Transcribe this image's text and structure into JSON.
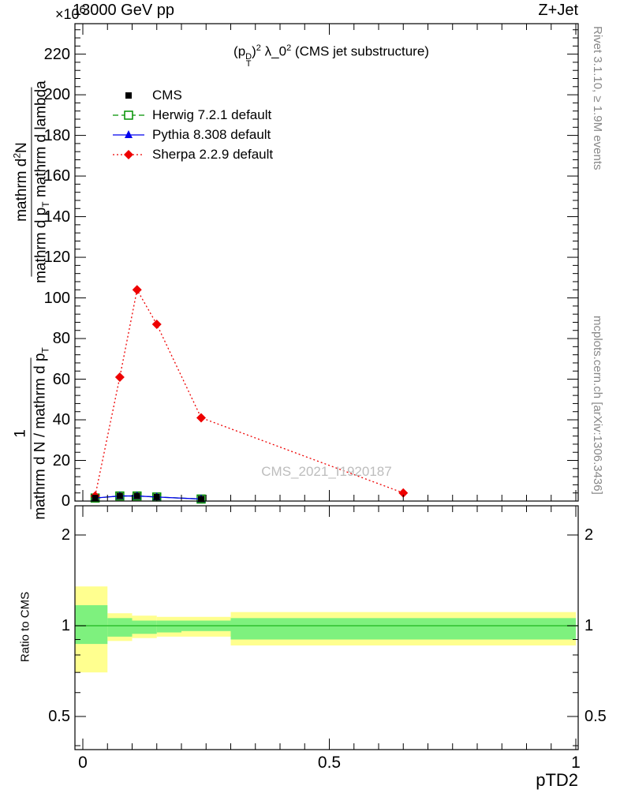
{
  "header": {
    "scale_x10": "×10",
    "scale_exp": "6",
    "energy": "13000 GeV pp",
    "process": "Z+Jet"
  },
  "title_parts": {
    "a": "(p",
    "sub1": "T",
    "sup1": "D",
    "b": ")",
    "sup2": "2",
    "c": " λ_0",
    "sup3": "2",
    "d": " (CMS jet substructure)"
  },
  "legend": {
    "items": [
      {
        "label": "CMS"
      },
      {
        "label": "Herwig 7.2.1 default"
      },
      {
        "label": "Pythia 8.308 default"
      },
      {
        "label": "Sherpa 2.2.9 default"
      }
    ]
  },
  "ylabel": {
    "f2_num_a": "mathrm d",
    "f2_num_sup": "2",
    "f2_num_b": "N",
    "f2_den_a": "mathrm d p",
    "f2_den_sub": "T",
    "f2_den_b": " mathrm d lambda",
    "f1_num": "1",
    "f1_den_a": "mathrm d N / mathrm d p",
    "f1_den_sub": "T"
  },
  "sidebar": {
    "rivet": "Rivet 3.1.10, ≥ 1.9M events",
    "mcplots": "mcplots.cern.ch [arXiv:1306.3436]"
  },
  "watermark": "CMS_2021_I1920187",
  "colors": {
    "cms": "#000000",
    "herwig": "#009100",
    "pythia": "#0000ee",
    "sherpa": "#ee0000",
    "band_yellow": "#ffff8f",
    "band_green": "#7ef17e",
    "ref_line": "#2fbf2f"
  },
  "chart_data": {
    "type": "line",
    "title": "(p_T^D)^2 λ_0^2 (CMS jet substructure)",
    "xlabel": "pTD2",
    "ylabel": "1/(dN/dp_T) d^2N/(dp_T dlambda)",
    "y_scale_factor": "×10^6",
    "main_panel": {
      "xlim": [
        -0.016,
        1.005
      ],
      "ylim": [
        0,
        235
      ],
      "grid": false,
      "legend_position": "upper-left",
      "ytick_values": [
        0,
        20,
        40,
        60,
        80,
        100,
        120,
        140,
        160,
        180,
        200,
        220
      ],
      "ytick_labels": [
        "0",
        "20",
        "40",
        "60",
        "80",
        "100",
        "120",
        "140",
        "160",
        "180",
        "200",
        "220"
      ],
      "y_minor_step": 4,
      "xtick_values": [
        0,
        0.5,
        1
      ],
      "x_minor_step": 0.05,
      "series": [
        {
          "name": "CMS",
          "color_key": "cms",
          "marker": "square-filled",
          "line": "none",
          "x": [
            0.025,
            0.075,
            0.11,
            0.15,
            0.24
          ],
          "y": [
            1.5,
            2.5,
            2.5,
            2,
            1
          ]
        },
        {
          "name": "Herwig 7.2.1 default",
          "color_key": "herwig",
          "marker": "square-open",
          "line": "dashed",
          "x": [
            0.025,
            0.075,
            0.11,
            0.15,
            0.24
          ],
          "y": [
            1.5,
            2.5,
            2.5,
            2,
            1
          ]
        },
        {
          "name": "Pythia 8.308 default",
          "color_key": "pythia",
          "marker": "triangle-filled",
          "line": "solid",
          "x": [
            0.025,
            0.075,
            0.11,
            0.15,
            0.24
          ],
          "y": [
            1.5,
            2.5,
            2.5,
            2,
            1
          ]
        },
        {
          "name": "Sherpa 2.2.9 default",
          "color_key": "sherpa",
          "marker": "diamond-filled",
          "line": "dotted",
          "x": [
            0.025,
            0.075,
            0.11,
            0.15,
            0.24,
            0.65
          ],
          "y": [
            2.5,
            61,
            104,
            87,
            41,
            4
          ]
        }
      ]
    },
    "ratio_panel": {
      "ylabel": "Ratio to CMS",
      "yscale": "log",
      "ylim": [
        0.39,
        2.5
      ],
      "ytick_values": [
        0.5,
        1,
        2
      ],
      "ytick_labels": [
        "0.5",
        "1",
        "2"
      ],
      "y_minor_values": [
        0.4,
        0.6,
        0.7,
        0.8,
        0.9
      ],
      "xtick_values": [
        0,
        0.5,
        1
      ],
      "xtick_labels": [
        "0",
        "0.5",
        "1"
      ],
      "x_minor_step": 0.05,
      "bin_edges": [
        0,
        0.05,
        0.1,
        0.15,
        0.2,
        0.3,
        1.0
      ],
      "yellow_band": [
        [
          0.7,
          1.35
        ],
        [
          0.89,
          1.1
        ],
        [
          0.91,
          1.08
        ],
        [
          0.92,
          1.07
        ],
        [
          0.92,
          1.07
        ],
        [
          0.86,
          1.11
        ]
      ],
      "green_band": [
        [
          0.87,
          1.17
        ],
        [
          0.92,
          1.06
        ],
        [
          0.94,
          1.04
        ],
        [
          0.95,
          1.04
        ],
        [
          0.96,
          1.04
        ],
        [
          0.9,
          1.06
        ]
      ],
      "reference_line": 1
    }
  }
}
